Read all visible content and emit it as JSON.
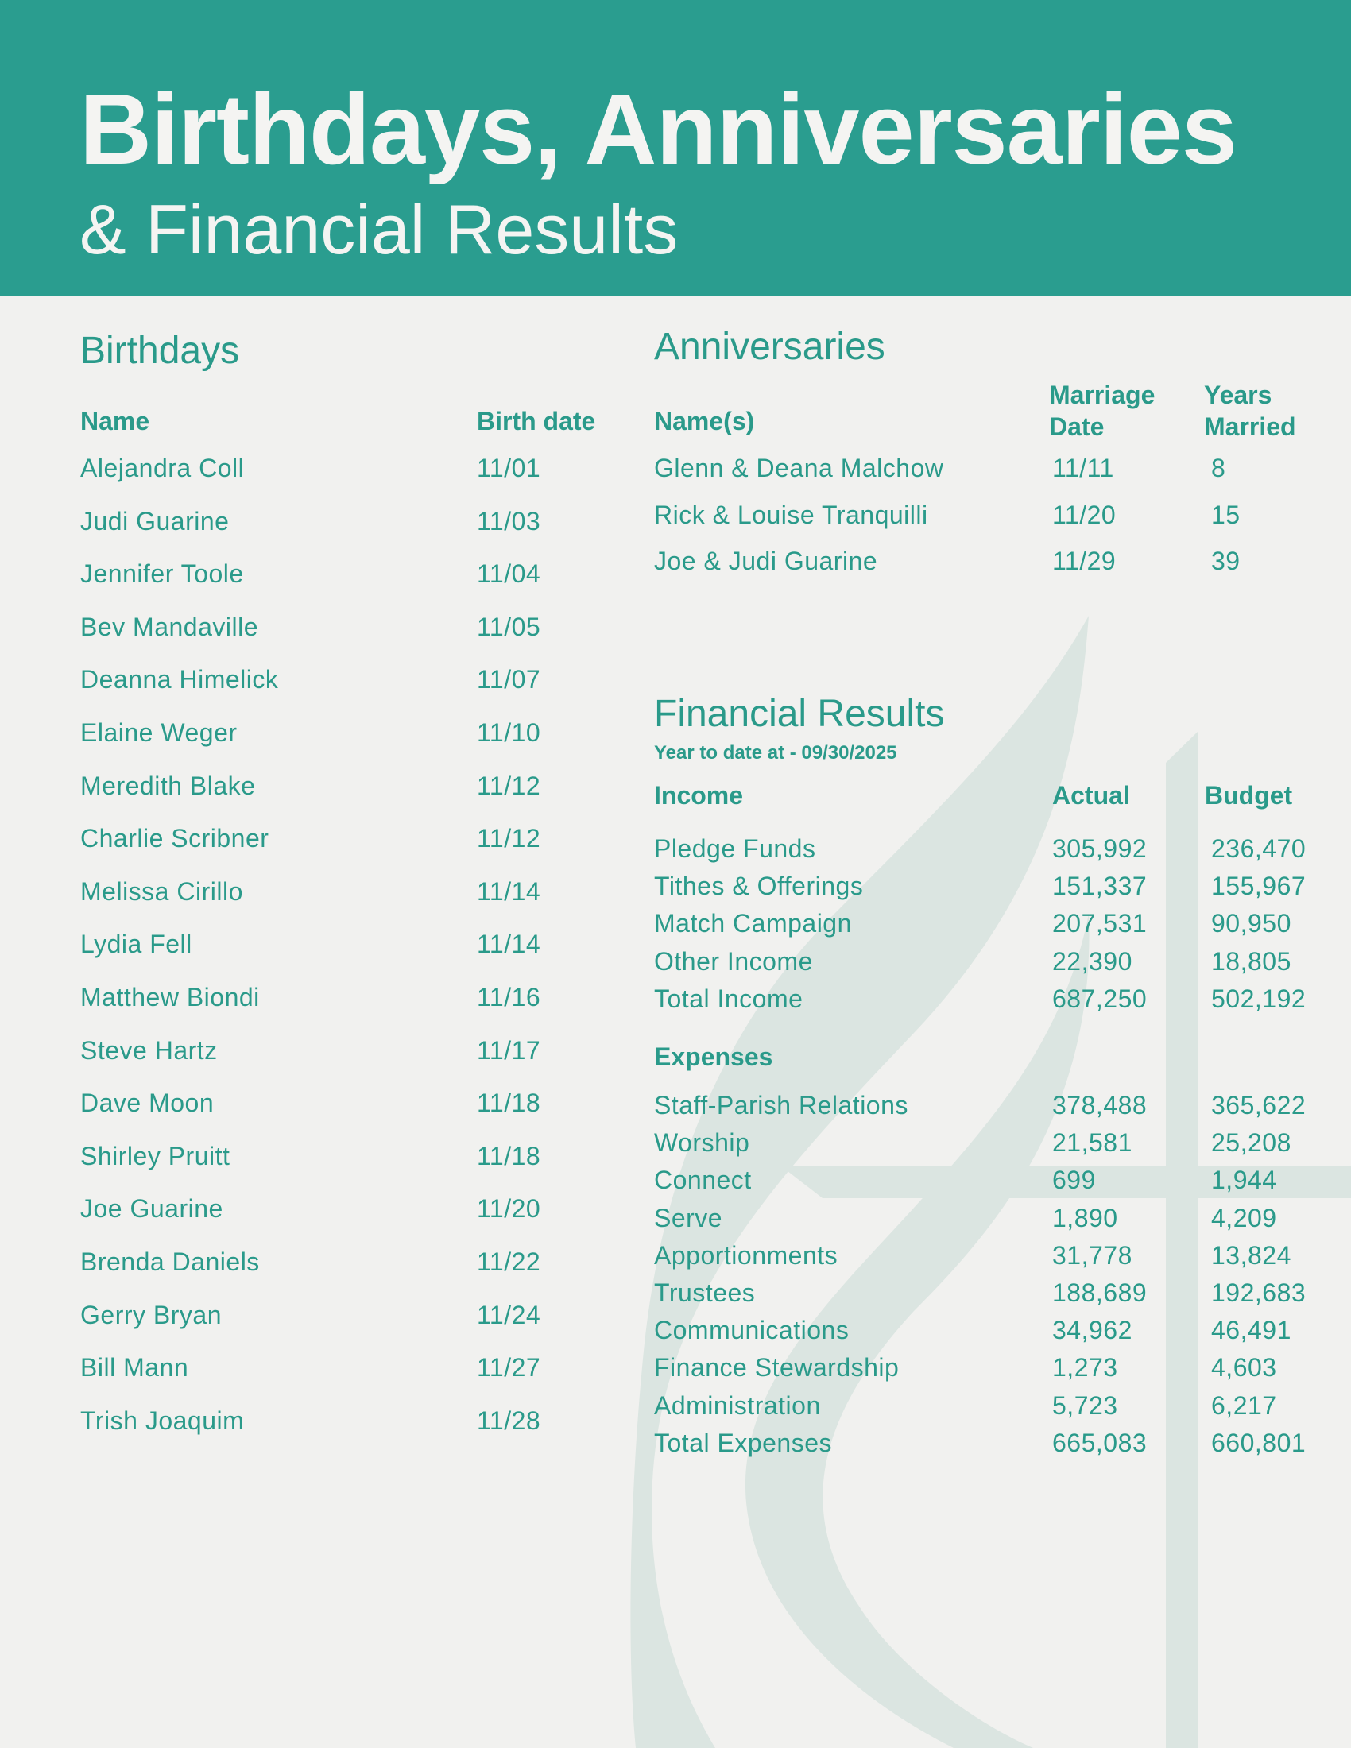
{
  "header": {
    "title": "Birthdays, Anniversaries",
    "subtitle": "& Financial Results"
  },
  "colors": {
    "header_bg": "#2a9d8f",
    "text": "#2a9a8a",
    "background": "#f1f1ef",
    "watermark": "#dbe5e1"
  },
  "watermark_icon": "cross-and-flame-icon",
  "birthdays": {
    "heading": "Birthdays",
    "columns": [
      "Name",
      "Birth date"
    ],
    "rows": [
      [
        "Alejandra Coll",
        "11/01"
      ],
      [
        "Judi Guarine",
        "11/03"
      ],
      [
        "Jennifer Toole",
        "11/04"
      ],
      [
        "Bev Mandaville",
        "11/05"
      ],
      [
        "Deanna Himelick",
        "11/07"
      ],
      [
        "Elaine Weger",
        "11/10"
      ],
      [
        "Meredith Blake",
        "11/12"
      ],
      [
        "Charlie Scribner",
        "11/12"
      ],
      [
        "Melissa Cirillo",
        "11/14"
      ],
      [
        "Lydia Fell",
        "11/14"
      ],
      [
        "Matthew Biondi",
        "11/16"
      ],
      [
        "Steve Hartz",
        "11/17"
      ],
      [
        "Dave Moon",
        "11/18"
      ],
      [
        "Shirley Pruitt",
        "11/18"
      ],
      [
        "Joe Guarine",
        "11/20"
      ],
      [
        "Brenda Daniels",
        "11/22"
      ],
      [
        "Gerry Bryan",
        "11/24"
      ],
      [
        "Bill Mann",
        "11/27"
      ],
      [
        "Trish Joaquim",
        "11/28"
      ]
    ]
  },
  "anniversaries": {
    "heading": "Anniversaries",
    "columns": [
      "Name(s)",
      "Marriage",
      "Date",
      "Years",
      "Married"
    ],
    "rows": [
      [
        "Glenn & Deana Malchow",
        "11/11",
        "8"
      ],
      [
        "Rick & Louise Tranquilli",
        "11/20",
        "15"
      ],
      [
        "Joe & Judi Guarine",
        "11/29",
        "39"
      ]
    ]
  },
  "financial": {
    "heading": "Financial Results",
    "subheading": "Year to date at - 09/30/2025",
    "income_label": "Income",
    "actual_label": "Actual",
    "budget_label": "Budget",
    "income": [
      [
        "Pledge Funds",
        "305,992",
        "236,470"
      ],
      [
        "Tithes & Offerings",
        "151,337",
        "155,967"
      ],
      [
        "Match Campaign",
        "207,531",
        "90,950"
      ],
      [
        "Other Income",
        "22,390",
        "18,805"
      ],
      [
        "Total Income",
        "687,250",
        "502,192"
      ]
    ],
    "expenses_label": "Expenses",
    "expenses": [
      [
        "Staff-Parish Relations",
        "378,488",
        "365,622"
      ],
      [
        "Worship",
        "21,581",
        "25,208"
      ],
      [
        "Connect",
        "699",
        "1,944"
      ],
      [
        "Serve",
        "1,890",
        "4,209"
      ],
      [
        "Apportionments",
        "31,778",
        "13,824"
      ],
      [
        "Trustees",
        "188,689",
        "192,683"
      ],
      [
        "Communications",
        "34,962",
        "46,491"
      ],
      [
        "Finance Stewardship",
        "1,273",
        "4,603"
      ],
      [
        "Administration",
        "5,723",
        "6,217"
      ],
      [
        "Total Expenses",
        "665,083",
        "660,801"
      ]
    ]
  }
}
